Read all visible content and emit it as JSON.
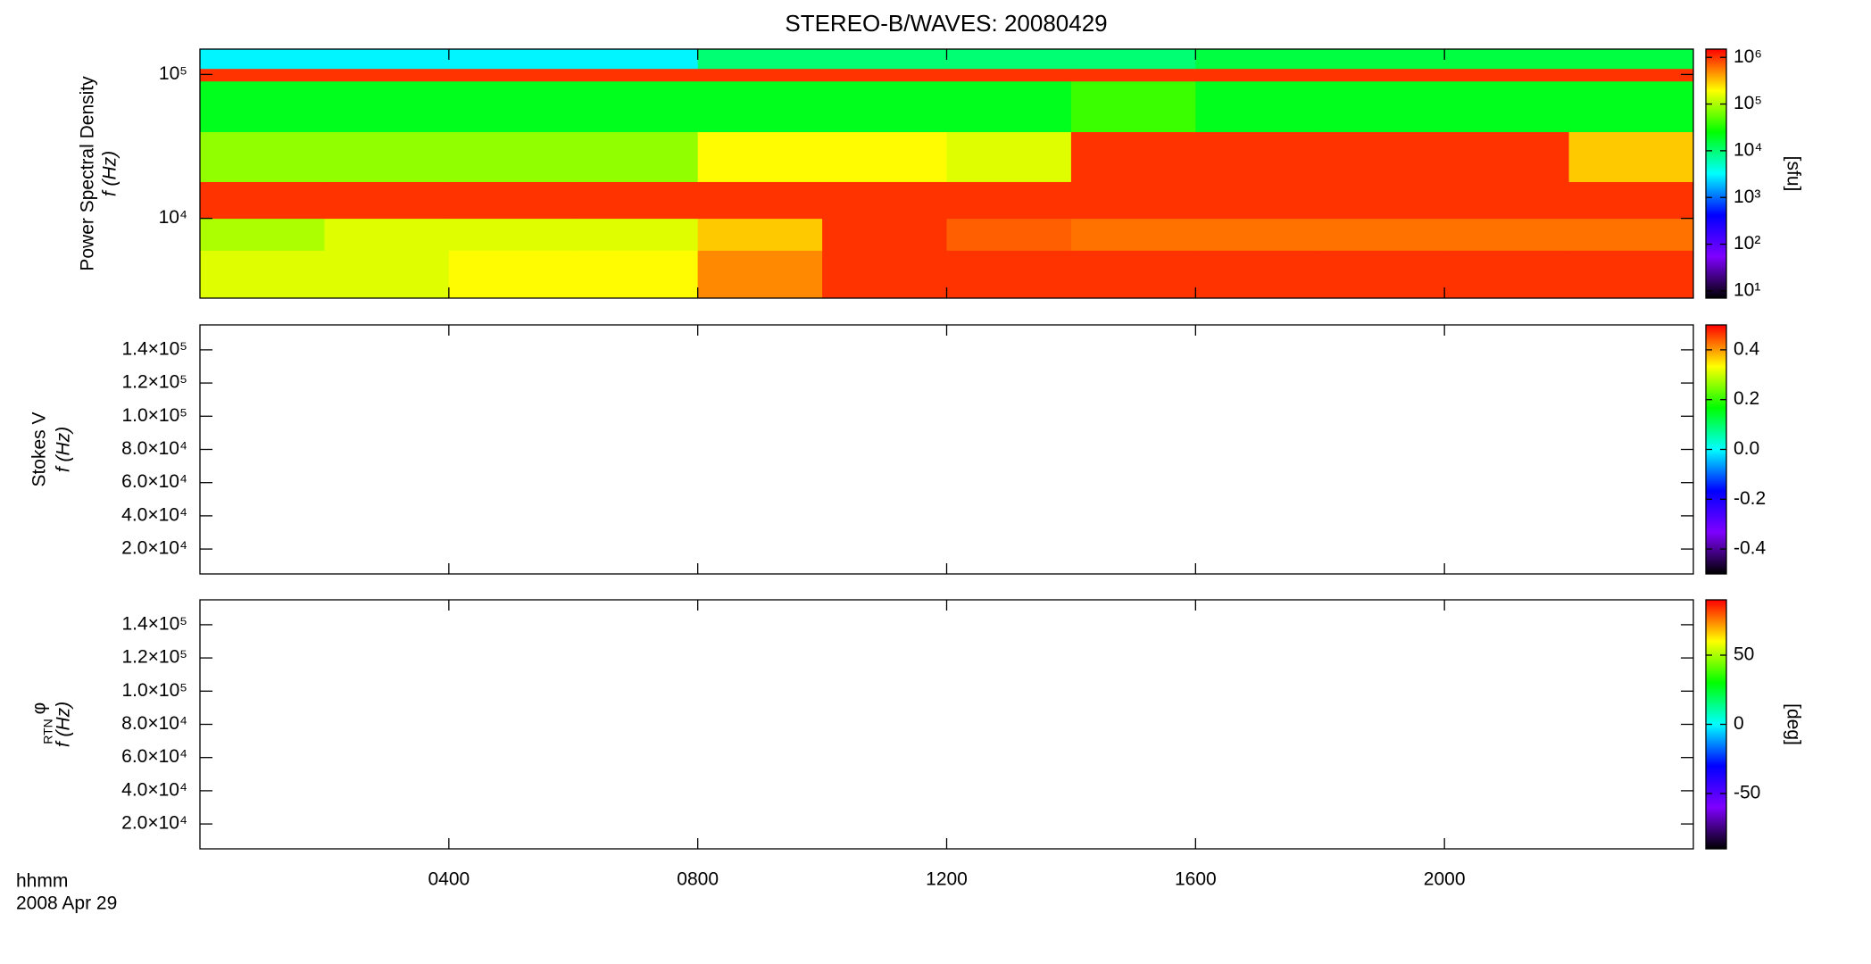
{
  "title": "STEREO-B/WAVES: 20080429",
  "time_axis": {
    "xlim": [
      0,
      24
    ],
    "xticks": [
      {
        "value": 4,
        "label": "0400"
      },
      {
        "value": 8,
        "label": "0800"
      },
      {
        "value": 12,
        "label": "1200"
      },
      {
        "value": 16,
        "label": "1600"
      },
      {
        "value": 20,
        "label": "2000"
      }
    ],
    "xlabel": "hhmm",
    "date": "2008 Apr 29"
  },
  "chart_data": [
    {
      "type": "heatmap",
      "ylabel": "Power Spectral Density",
      "ylabel2": "f (Hz)",
      "ylog": true,
      "ylim": [
        2790,
        150000
      ],
      "yticks": [
        {
          "value": 10000,
          "label": "10⁴"
        },
        {
          "value": 100000,
          "label": "10⁵"
        }
      ],
      "x_edges": [
        0,
        2,
        4,
        6,
        8,
        10,
        12,
        14,
        16,
        18,
        20,
        22,
        24
      ],
      "y_edges": [
        2790,
        6000,
        10000,
        14000,
        18000,
        40000,
        90000,
        110000,
        150000
      ],
      "values": [
        [
          150000,
          150000,
          200000,
          200000,
          500000,
          1000000,
          1000000,
          1000000,
          1000000,
          1000000,
          1000000,
          1000000
        ],
        [
          100000,
          150000,
          150000,
          150000,
          300000,
          1000000,
          700000,
          600000,
          600000,
          600000,
          600000,
          600000
        ],
        [
          1000000,
          1000000,
          1000000,
          1000000,
          1000000,
          1000000,
          1000000,
          1000000,
          1000000,
          1000000,
          1000000,
          1000000
        ],
        [
          1000000,
          1000000,
          1000000,
          1000000,
          1000000,
          1000000,
          1000000,
          1000000,
          1000000,
          1000000,
          1000000,
          1000000
        ],
        [
          80000,
          80000,
          80000,
          80000,
          200000,
          200000,
          150000,
          1000000,
          1000000,
          1000000,
          1000000,
          300000
        ],
        [
          20000,
          20000,
          20000,
          20000,
          20000,
          20000,
          20000,
          40000,
          20000,
          20000,
          20000,
          20000
        ],
        [
          1000000,
          1000000,
          1000000,
          1000000,
          1000000,
          1000000,
          1000000,
          1000000,
          1000000,
          1000000,
          1000000,
          1000000
        ],
        [
          3000,
          3000,
          3000,
          3000,
          10000,
          10000,
          10000,
          10000,
          15000,
          15000,
          15000,
          15000
        ]
      ],
      "zlog": true,
      "zlim": [
        7,
        1500000
      ],
      "zticks": [
        {
          "value": 10,
          "label": "10¹"
        },
        {
          "value": 100,
          "label": "10²"
        },
        {
          "value": 1000,
          "label": "10³"
        },
        {
          "value": 10000,
          "label": "10⁴"
        },
        {
          "value": 100000,
          "label": "10⁵"
        },
        {
          "value": 1000000,
          "label": "10⁶"
        }
      ],
      "zlabel": "[sfu]",
      "colormap": [
        "#000000",
        "#7f00ff",
        "#0000ff",
        "#00ffff",
        "#00ff00",
        "#ffff00",
        "#ff0000"
      ]
    },
    {
      "type": "heatmap",
      "ylabel": "Stokes V",
      "ylabel2": "f (Hz)",
      "ylog": false,
      "ylim": [
        5000,
        155000
      ],
      "yticks": [
        {
          "value": 20000,
          "label": "2.0×10⁴"
        },
        {
          "value": 40000,
          "label": "4.0×10⁴"
        },
        {
          "value": 60000,
          "label": "6.0×10⁴"
        },
        {
          "value": 80000,
          "label": "8.0×10⁴"
        },
        {
          "value": 100000,
          "label": "1.0×10⁵"
        },
        {
          "value": 120000,
          "label": "1.2×10⁵"
        },
        {
          "value": 140000,
          "label": "1.4×10⁵"
        }
      ],
      "zlog": false,
      "zlim": [
        -0.5,
        0.5
      ],
      "zticks": [
        -0.4,
        -0.2,
        {
          "value": 0,
          "label": "0.0"
        },
        0.2,
        0.4
      ],
      "colormap": [
        "#000000",
        "#7f00ff",
        "#0000ff",
        "#00ffff",
        "#00ff00",
        "#ffff00",
        "#ff0000"
      ]
    },
    {
      "type": "heatmap",
      "ylabel_symbol": "φ",
      "ylabel_subscript": "RTN",
      "ylabel2": "f (Hz)",
      "ylog": false,
      "ylim": [
        5000,
        155000
      ],
      "yticks": [
        {
          "value": 20000,
          "label": "2.0×10⁴"
        },
        {
          "value": 40000,
          "label": "4.0×10⁴"
        },
        {
          "value": 60000,
          "label": "6.0×10⁴"
        },
        {
          "value": 80000,
          "label": "8.0×10⁴"
        },
        {
          "value": 100000,
          "label": "1.0×10⁵"
        },
        {
          "value": 120000,
          "label": "1.2×10⁵"
        },
        {
          "value": 140000,
          "label": "1.4×10⁵"
        }
      ],
      "zlog": false,
      "zlim": [
        -90,
        90
      ],
      "zticks": [
        -50,
        0,
        50
      ],
      "zlabel": "[deg]",
      "colormap": [
        "#000000",
        "#7f00ff",
        "#0000ff",
        "#00ffff",
        "#00ff00",
        "#ffff00",
        "#ff0000"
      ]
    }
  ]
}
